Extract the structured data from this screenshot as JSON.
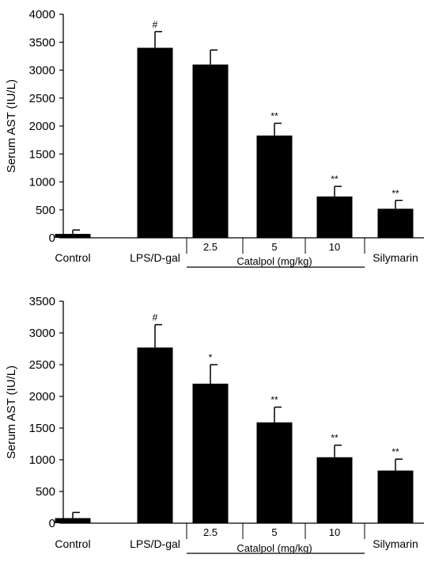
{
  "chart_data": [
    {
      "type": "bar",
      "ylabel": "Serum AST (IU/L)",
      "ylim": [
        0,
        4000
      ],
      "yticks": [
        0,
        500,
        1000,
        1500,
        2000,
        2500,
        3000,
        3500,
        4000
      ],
      "categories": [
        "Control",
        "LPS/D-gal",
        "2.5",
        "5",
        "10",
        "Silymarin"
      ],
      "values": [
        70,
        3400,
        3100,
        1830,
        740,
        520
      ],
      "errors": [
        70,
        290,
        260,
        220,
        180,
        150
      ],
      "significance": [
        "",
        "#",
        "",
        "**",
        "**",
        "**"
      ],
      "group_label": "Catalpol (mg/kg)",
      "color": "#000000"
    },
    {
      "type": "bar",
      "ylabel": "Serum AST (IU/L)",
      "ylim": [
        0,
        3500
      ],
      "yticks": [
        0,
        500,
        1000,
        1500,
        2000,
        2500,
        3000,
        3500
      ],
      "categories": [
        "Control",
        "LPS/D-gal",
        "2.5",
        "5",
        "10",
        "Silymarin"
      ],
      "values": [
        80,
        2770,
        2200,
        1590,
        1040,
        830
      ],
      "errors": [
        90,
        360,
        300,
        240,
        190,
        180
      ],
      "significance": [
        "",
        "#",
        "*",
        "**",
        "**",
        "**"
      ],
      "group_label": "Catalpol (mg/kg)",
      "color": "#000000"
    }
  ]
}
